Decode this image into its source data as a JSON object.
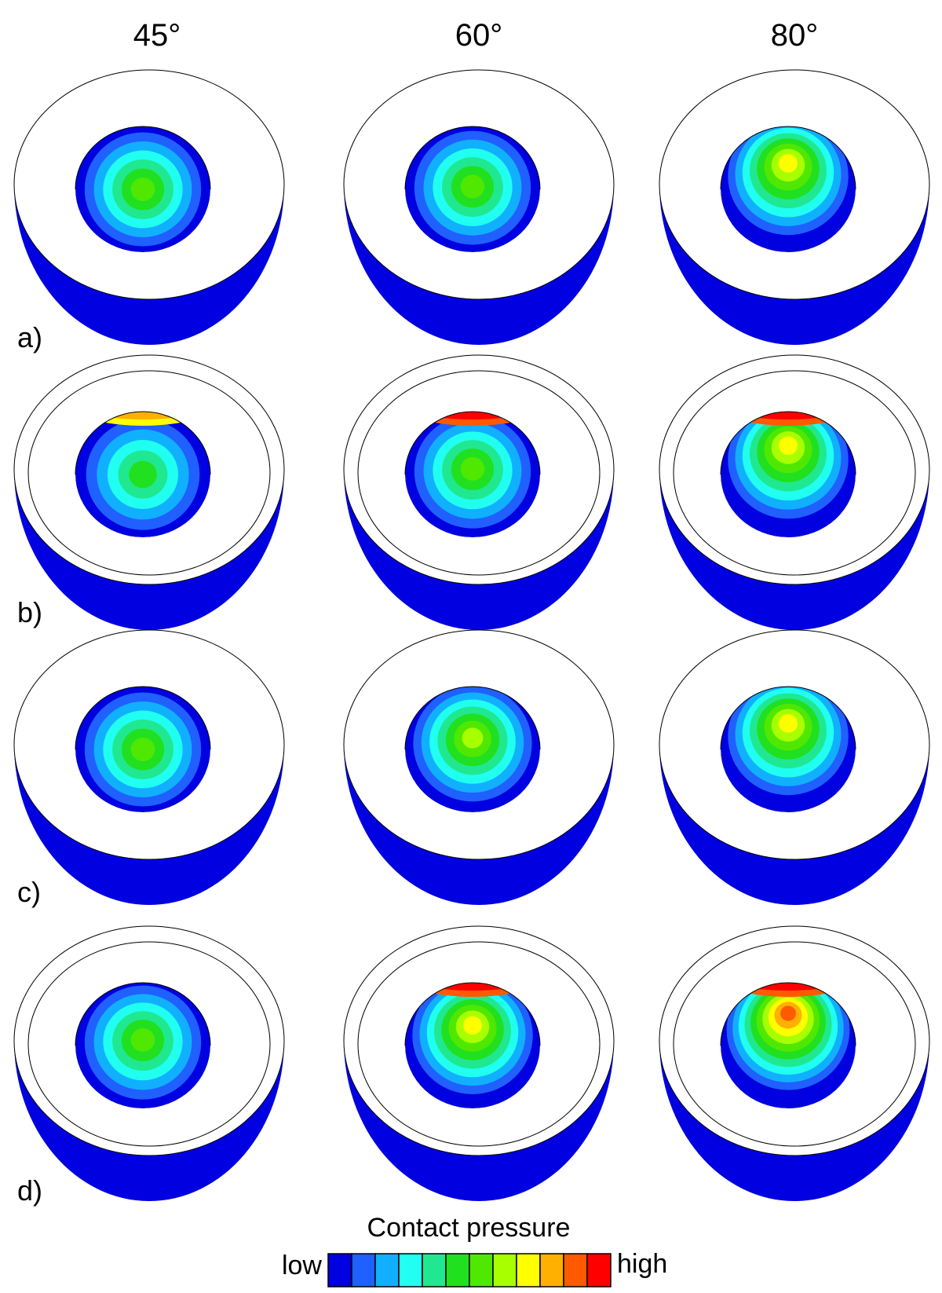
{
  "columns": [
    "45°",
    "60°",
    "80°"
  ],
  "rows": [
    "a)",
    "b)",
    "c)",
    "d)"
  ],
  "legend": {
    "title": "Contact pressure",
    "low": "low",
    "high": "high"
  }
}
